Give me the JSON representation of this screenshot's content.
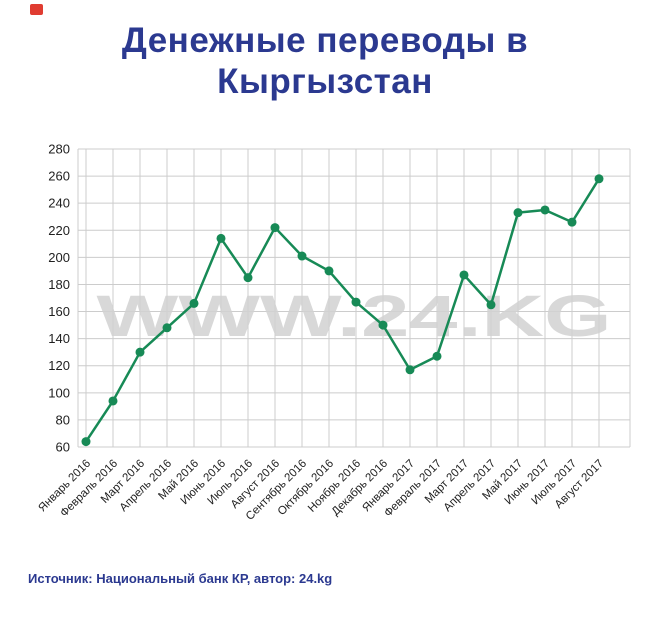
{
  "header": {
    "title": "Денежные переводы в Кыргызстан"
  },
  "watermark": "WWW.24.KG",
  "footer": {
    "source": "Источник: Национальный банк КР, автор: 24.kg"
  },
  "colors": {
    "title": "#2b3990",
    "line": "#178a56",
    "point": "#178a56",
    "grid": "#cccccc",
    "axis_label": "#1f1f1f",
    "watermark": "#d2d2d2",
    "source": "#2b3990",
    "logo_fragment": "#e03c31"
  },
  "chart_data": {
    "type": "line",
    "title": "Денежные переводы в Кыргызстан",
    "categories": [
      "Январь 2016",
      "Февраль 2016",
      "Март 2016",
      "Апрель 2016",
      "Май 2016",
      "Июнь 2016",
      "Июль 2016",
      "Август 2016",
      "Сентябрь 2016",
      "Октябрь 2016",
      "Ноябрь 2016",
      "Декабрь 2016",
      "Январь 2017",
      "Февраль 2017",
      "Март 2017",
      "Апрель 2017",
      "Май 2017",
      "Июнь 2017",
      "Июль 2017",
      "Август 2017"
    ],
    "values": [
      64,
      94,
      130,
      148,
      166,
      214,
      185,
      222,
      201,
      190,
      167,
      150,
      117,
      127,
      187,
      165,
      233,
      235,
      226,
      258
    ],
    "xlabel": "",
    "ylabel": "",
    "ylim": [
      60,
      280
    ],
    "ytick_step": 20,
    "grid": true,
    "legend": "none"
  }
}
